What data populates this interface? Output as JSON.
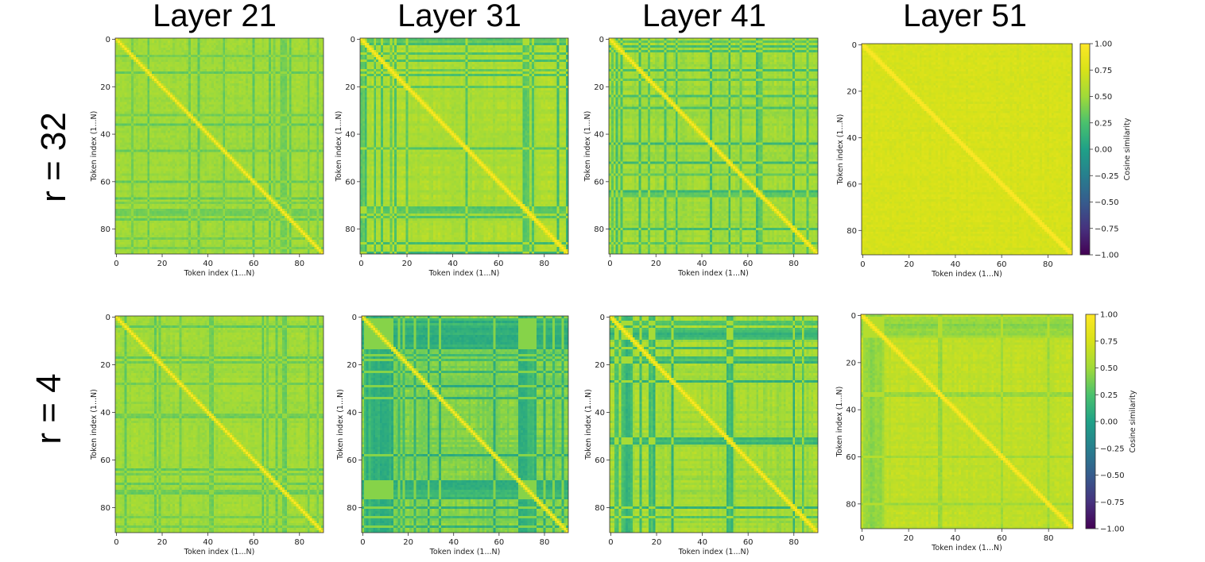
{
  "figure": {
    "column_titles": [
      "Layer 21",
      "Layer 31",
      "Layer 41",
      "Layer 51"
    ],
    "row_labels": [
      "r = 32",
      "r = 4"
    ]
  },
  "chart_data": {
    "type": "heatmap",
    "colormap": "viridis",
    "n_tokens": 91,
    "xlabel": "Token index (1...N)",
    "ylabel": "Token index (1...N)",
    "xticks": [
      0,
      20,
      40,
      60,
      80
    ],
    "yticks": [
      0,
      20,
      40,
      60,
      80
    ],
    "colorbar": {
      "label": "Cosine similarity",
      "range": [
        -1.0,
        1.0
      ],
      "ticks": [
        "1.00",
        "0.75",
        "0.50",
        "0.25",
        "0.00",
        "−0.25",
        "−0.50",
        "−0.75",
        "−1.00"
      ]
    },
    "panels": [
      {
        "row": "r = 32",
        "layer": "Layer 21",
        "diagonal": 1.0,
        "typical_similarity": 0.55,
        "low_similarity_tokens": [
          7,
          14,
          32,
          36,
          47,
          60,
          67,
          69,
          72,
          73,
          74,
          76,
          84,
          88
        ],
        "low_similarity_value": 0.3
      },
      {
        "row": "r = 32",
        "layer": "Layer 31",
        "diagonal": 1.0,
        "typical_similarity": 0.65,
        "low_similarity_tokens": [
          0,
          1,
          2,
          6,
          9,
          13,
          15,
          20,
          46,
          71,
          72,
          73,
          75,
          86,
          90
        ],
        "low_similarity_value": 0.15
      },
      {
        "row": "r = 32",
        "layer": "Layer 41",
        "diagonal": 1.0,
        "typical_similarity": 0.6,
        "low_similarity_tokens": [
          1,
          3,
          5,
          13,
          17,
          24,
          29,
          44,
          52,
          57,
          64,
          65,
          66,
          80,
          86
        ],
        "low_similarity_value": 0.15
      },
      {
        "row": "r = 32",
        "layer": "Layer 51",
        "diagonal": 1.0,
        "typical_similarity": 0.78,
        "low_similarity_tokens": [],
        "low_similarity_value": 0.6
      },
      {
        "row": "r = 4",
        "layer": "Layer 21",
        "diagonal": 1.0,
        "typical_similarity": 0.55,
        "low_similarity_tokens": [
          4,
          17,
          19,
          28,
          41,
          42,
          64,
          66,
          70,
          73,
          74,
          84,
          88
        ],
        "low_similarity_value": 0.3
      },
      {
        "row": "r = 4",
        "layer": "Layer 31",
        "diagonal": 1.0,
        "typical_similarity": 0.5,
        "low_similarity_tokens": [
          1,
          2,
          3,
          4,
          5,
          6,
          7,
          8,
          9,
          10,
          11,
          12,
          13,
          16,
          18,
          23,
          29,
          34,
          58,
          69,
          70,
          71,
          72,
          73,
          74,
          75,
          76,
          80,
          84,
          88
        ],
        "low_similarity_value": 0.05
      },
      {
        "row": "r = 4",
        "layer": "Layer 41",
        "diagonal": 1.0,
        "typical_similarity": 0.62,
        "low_similarity_tokens": [
          2,
          3,
          5,
          6,
          7,
          8,
          9,
          13,
          17,
          18,
          19,
          27,
          51,
          52,
          53,
          80,
          84
        ],
        "low_similarity_value": 0.1
      },
      {
        "row": "r = 4",
        "layer": "Layer 51",
        "diagonal": 1.0,
        "typical_similarity": 0.7,
        "low_similarity_tokens": [
          1,
          2,
          3,
          4,
          5,
          6,
          7,
          8,
          9,
          33,
          34,
          60,
          80
        ],
        "low_similarity_value": 0.4
      }
    ]
  }
}
